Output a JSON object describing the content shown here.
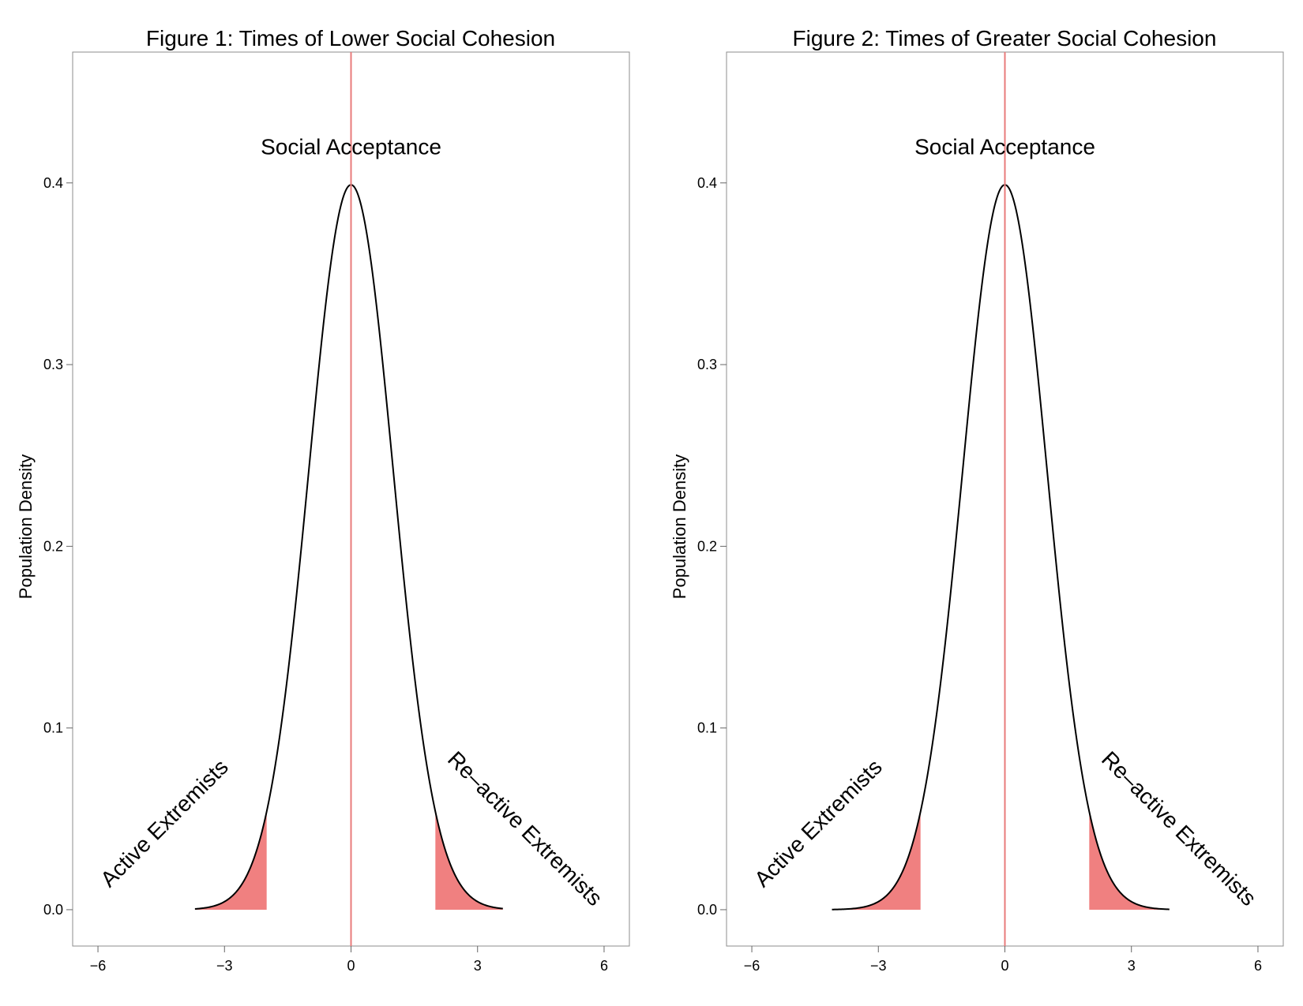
{
  "chart_data": [
    {
      "type": "area",
      "title": "Figure 1: Times of Lower Social Cohesion",
      "xlabel": "",
      "ylabel": "Population Density",
      "xlim": [
        -6.6,
        6.6
      ],
      "ylim": [
        -0.02,
        0.472
      ],
      "xticks": [
        -6,
        -3,
        0,
        3,
        6
      ],
      "xtick_labels": [
        "−6",
        "−3",
        "0",
        "3",
        "6"
      ],
      "yticks": [
        0.0,
        0.1,
        0.2,
        0.3,
        0.4
      ],
      "ytick_labels": [
        "0.0",
        "0.1",
        "0.2",
        "0.3",
        "0.4"
      ],
      "grid": false,
      "curve": {
        "distribution": "normal",
        "mean": 0,
        "sd": 1,
        "x_range": [
          -3.7,
          3.6
        ]
      },
      "shaded_regions": [
        {
          "x_from": -3.7,
          "x_to": -2.0
        },
        {
          "x_from": 2.0,
          "x_to": 3.6
        }
      ],
      "vline": {
        "x": 0
      },
      "annotations": [
        {
          "text": "Social Acceptance",
          "x": 0,
          "y": 0.419,
          "angle": 0
        },
        {
          "text": "Active Extremists",
          "x": -4.4,
          "y": 0.047,
          "angle": -45
        },
        {
          "text": "Re–active Extremists",
          "x": 4.1,
          "y": 0.044,
          "angle": 45
        }
      ],
      "colors": {
        "fill": "#f08080",
        "vline": "#e87b7b",
        "curve": "#000000"
      }
    },
    {
      "type": "area",
      "title": "Figure 2: Times of Greater Social Cohesion",
      "xlabel": "",
      "ylabel": "Population Density",
      "xlim": [
        -6.6,
        6.6
      ],
      "ylim": [
        -0.02,
        0.472
      ],
      "xticks": [
        -6,
        -3,
        0,
        3,
        6
      ],
      "xtick_labels": [
        "−6",
        "−3",
        "0",
        "3",
        "6"
      ],
      "yticks": [
        0.0,
        0.1,
        0.2,
        0.3,
        0.4
      ],
      "ytick_labels": [
        "0.0",
        "0.1",
        "0.2",
        "0.3",
        "0.4"
      ],
      "grid": false,
      "curve": {
        "distribution": "normal",
        "mean": 0,
        "sd": 1,
        "x_range": [
          -4.1,
          3.9
        ]
      },
      "shaded_regions": [
        {
          "x_from": -4.1,
          "x_to": -2.0
        },
        {
          "x_from": 2.0,
          "x_to": 3.9
        }
      ],
      "vline": {
        "x": 0
      },
      "annotations": [
        {
          "text": "Social Acceptance",
          "x": 0,
          "y": 0.419,
          "angle": 0
        },
        {
          "text": "Active Extremists",
          "x": -4.4,
          "y": 0.047,
          "angle": -45
        },
        {
          "text": "Re–active Extremists",
          "x": 4.1,
          "y": 0.044,
          "angle": 45
        }
      ],
      "colors": {
        "fill": "#f08080",
        "vline": "#e87b7b",
        "curve": "#000000"
      }
    }
  ]
}
